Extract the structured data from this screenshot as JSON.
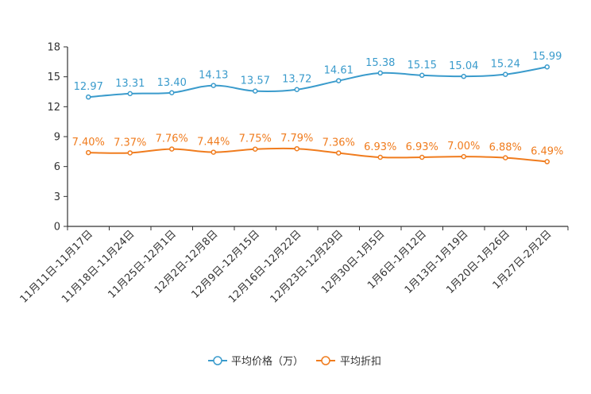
{
  "chart_data": {
    "type": "line",
    "categories": [
      "11月11日-11月17日",
      "11月18日-11月24日",
      "11月25日-12月1日",
      "12月2日-12月8日",
      "12月9日-12月15日",
      "12月16日-12月22日",
      "12月23日-12月29日",
      "12月30日-1月5日",
      "1月6日-1月12日",
      "1月13日-1月19日",
      "1月20日-1月26日",
      "1月27日-2月2日"
    ],
    "ylim": [
      0,
      18
    ],
    "yticks": [
      0,
      3,
      6,
      9,
      12,
      15,
      18
    ],
    "grid": false,
    "legend_position": "bottom-center",
    "series": [
      {
        "name": "平均价格（万）",
        "color": "#3a9bcc",
        "values": [
          12.97,
          13.31,
          13.4,
          14.13,
          13.57,
          13.72,
          14.61,
          15.38,
          15.15,
          15.04,
          15.24,
          15.99
        ],
        "labels": [
          "12.97",
          "13.31",
          "13.40",
          "14.13",
          "13.57",
          "13.72",
          "14.61",
          "15.38",
          "15.15",
          "15.04",
          "15.24",
          "15.99"
        ]
      },
      {
        "name": "平均折扣",
        "color": "#f07c1e",
        "values": [
          7.4,
          7.37,
          7.76,
          7.44,
          7.75,
          7.79,
          7.36,
          6.93,
          6.93,
          7.0,
          6.88,
          6.49
        ],
        "labels": [
          "7.40%",
          "7.37%",
          "7.76%",
          "7.44%",
          "7.75%",
          "7.79%",
          "7.36%",
          "6.93%",
          "6.93%",
          "7.00%",
          "6.88%",
          "6.49%"
        ]
      }
    ]
  }
}
